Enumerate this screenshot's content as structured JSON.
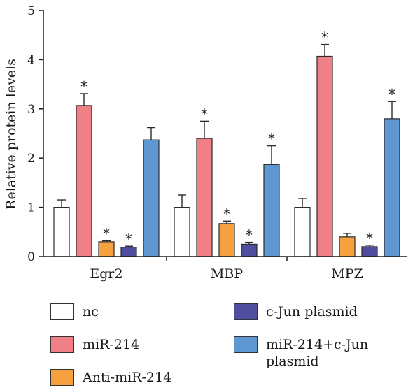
{
  "chart_data": {
    "type": "bar",
    "title": "",
    "xlabel": "",
    "ylabel": "Relative protein levels",
    "ylim": [
      0,
      5
    ],
    "yticks": [
      "0",
      "1",
      "2",
      "3",
      "4",
      "5"
    ],
    "categories": [
      "Egr2",
      "MBP",
      "MPZ"
    ],
    "grid": false,
    "legend_position": "bottom",
    "series": [
      {
        "name": "nc",
        "color": "#ffffff",
        "values": [
          1.0,
          1.0,
          1.0
        ],
        "errors": [
          0.15,
          0.25,
          0.18
        ],
        "sig": [
          "",
          "",
          ""
        ]
      },
      {
        "name": "miR-214",
        "color": "#f07f86",
        "values": [
          3.07,
          2.4,
          4.07
        ],
        "errors": [
          0.24,
          0.35,
          0.24
        ],
        "sig": [
          "*",
          "*",
          "*"
        ]
      },
      {
        "name": "Anti-miR-214",
        "color": "#f6a13f",
        "values": [
          0.3,
          0.67,
          0.4
        ],
        "errors": [
          0.02,
          0.05,
          0.07
        ],
        "sig": [
          "*",
          "*",
          ""
        ]
      },
      {
        "name": "c-Jun plasmid",
        "color": "#4f4d9e",
        "values": [
          0.19,
          0.25,
          0.2
        ],
        "errors": [
          0.02,
          0.04,
          0.03
        ],
        "sig": [
          "*",
          "*",
          "*"
        ]
      },
      {
        "name": "miR-214+c-Jun plasmid",
        "color": "#5e97d1",
        "values": [
          2.37,
          1.87,
          2.8
        ],
        "errors": [
          0.25,
          0.38,
          0.35
        ],
        "sig": [
          "",
          "*",
          "*"
        ]
      }
    ],
    "significance_mark": "*"
  },
  "legend": {
    "items": [
      {
        "label": "nc",
        "color": "#ffffff"
      },
      {
        "label": "miR-214",
        "color": "#f07f86"
      },
      {
        "label": "Anti-miR-214",
        "color": "#f6a13f"
      },
      {
        "label": "c-Jun plasmid",
        "color": "#4f4d9e"
      },
      {
        "label": "miR-214+c-Jun plasmid",
        "color": "#5e97d1"
      }
    ]
  }
}
